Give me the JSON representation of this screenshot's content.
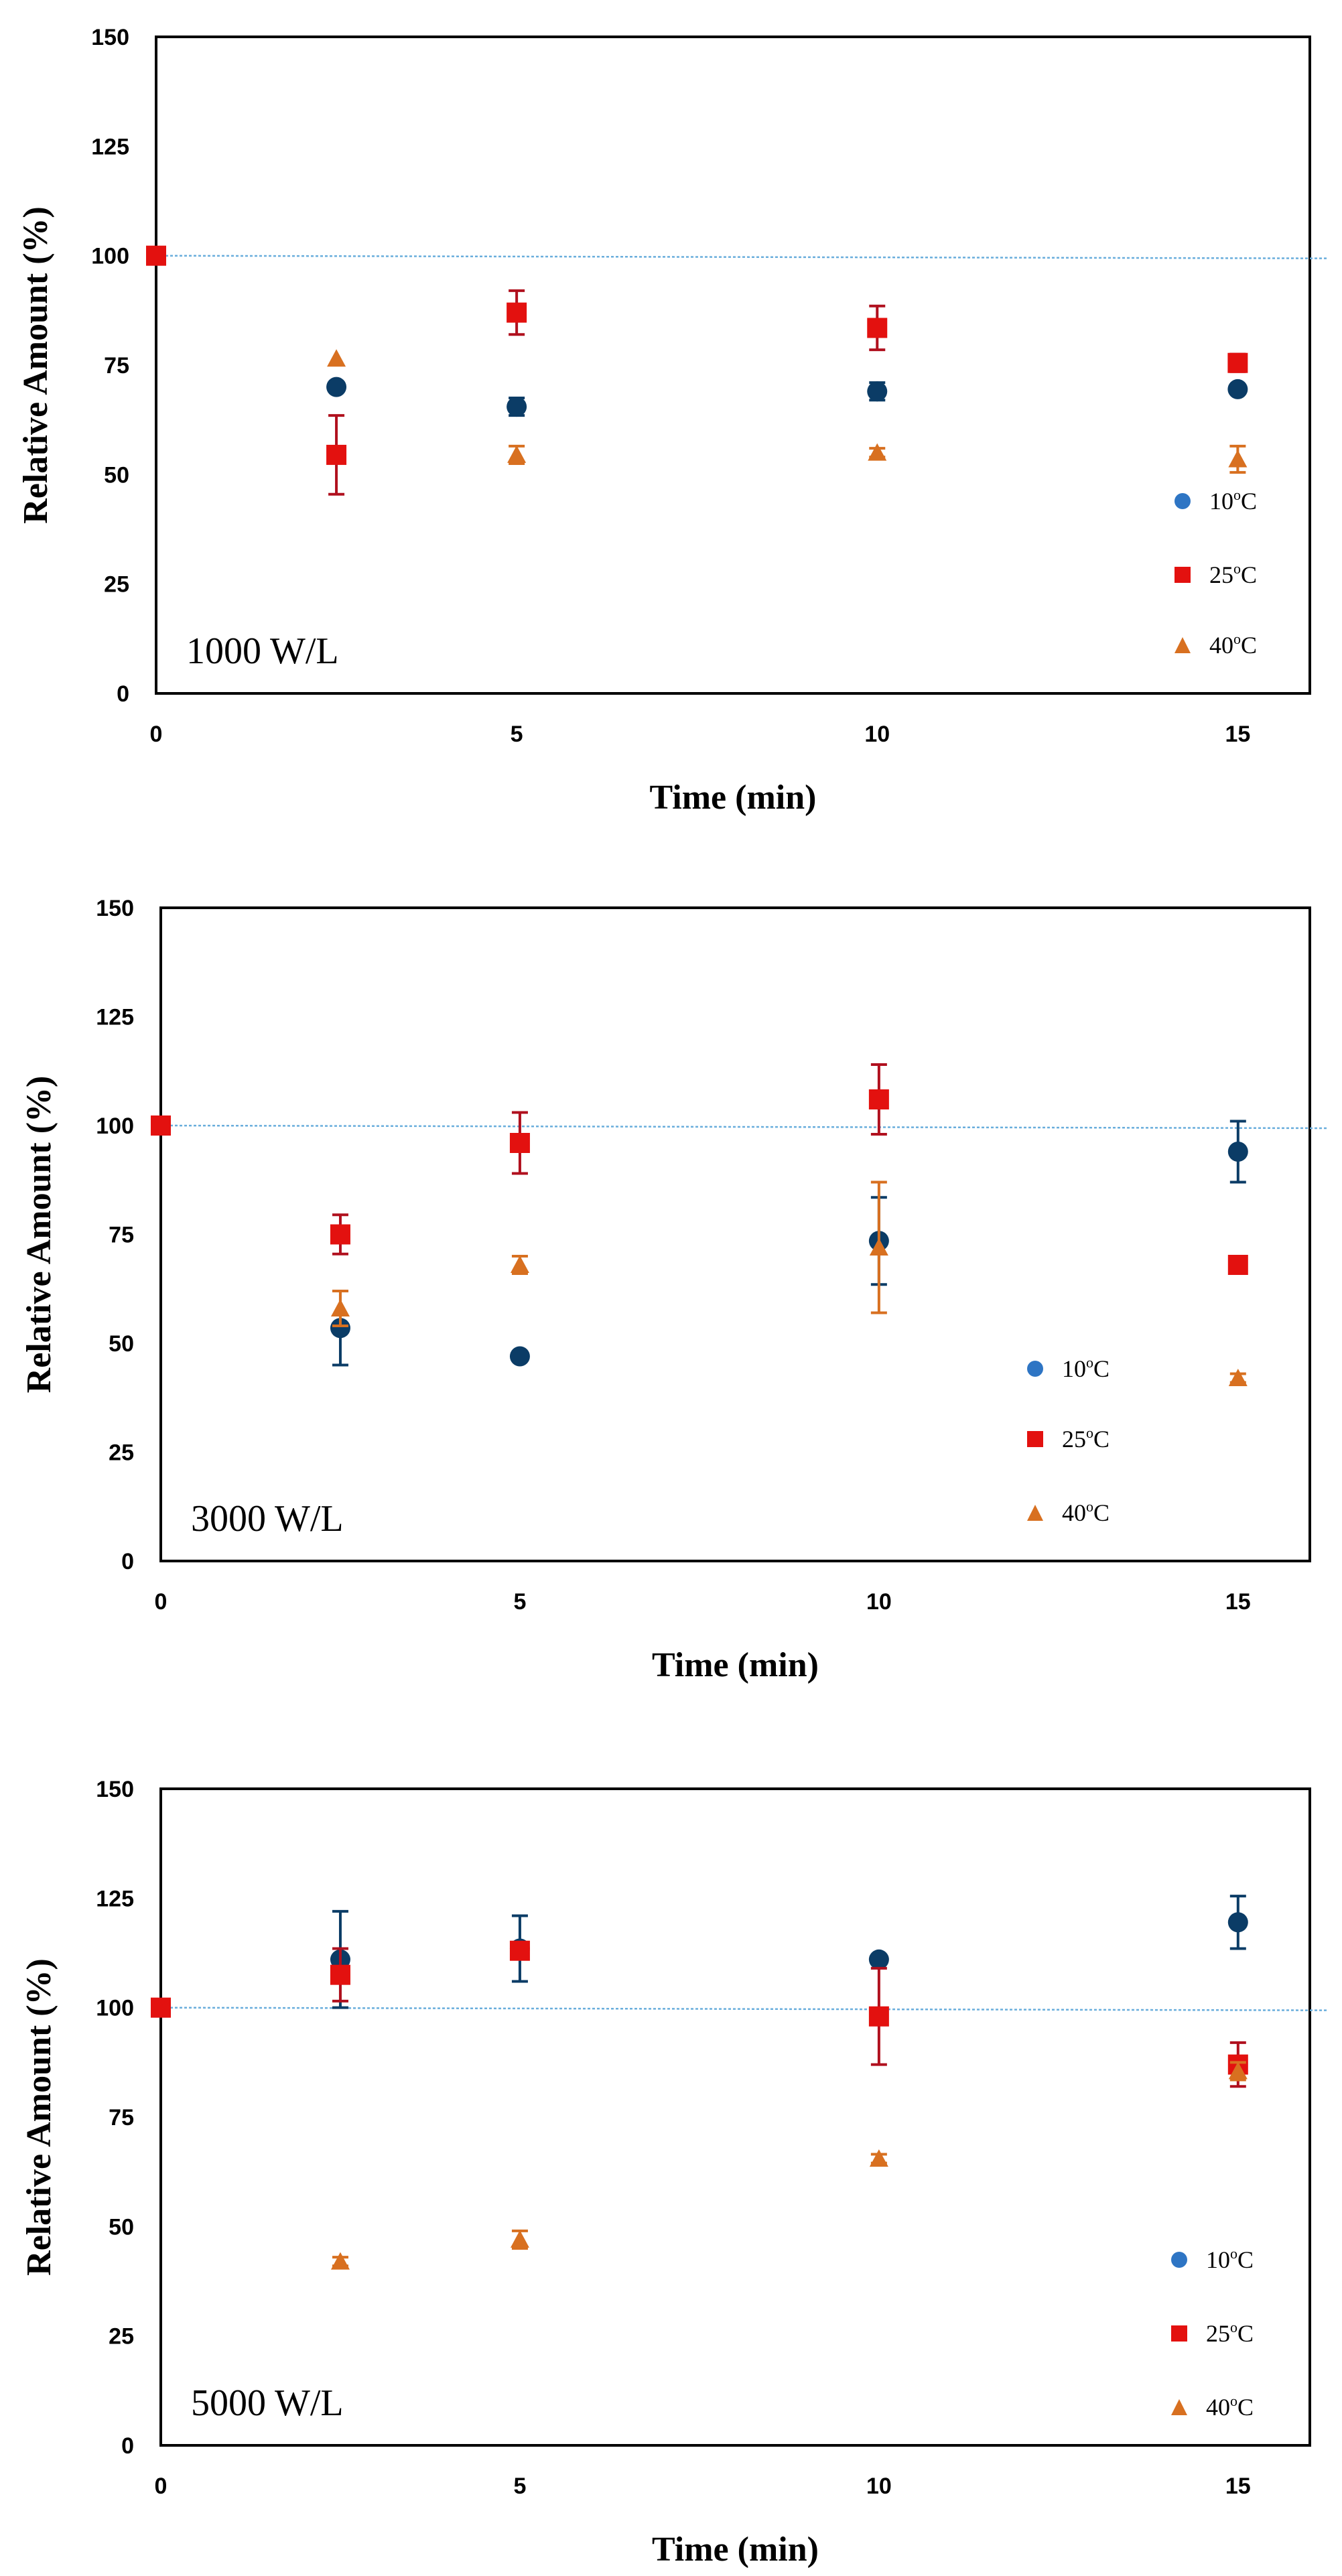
{
  "colors": {
    "c10": "#0b3c66",
    "c10_legend": "#2e75c4",
    "c25": "#e3110f",
    "c25_err": "#b0101e",
    "c40": "#d87020",
    "ref_line": "#6aaedc"
  },
  "chart_data": [
    {
      "type": "scatter",
      "panel_label": "1000 W/L",
      "xlabel": "Time (min)",
      "ylabel": "Relative Amount (%)",
      "xlim": [
        0,
        16
      ],
      "ylim": [
        0,
        150
      ],
      "xticks": [
        0,
        5,
        10,
        15
      ],
      "yticks": [
        0,
        25,
        50,
        75,
        100,
        125,
        150
      ],
      "reference_line": 100,
      "legend_position": "bottom-right",
      "series": [
        {
          "name": "10°C",
          "legend_main": "10",
          "legend_sup": "o",
          "legend_tail": "C",
          "marker": "circle",
          "color": "#0b3c66",
          "x": [
            2.5,
            5,
            10,
            15
          ],
          "y": [
            70,
            65.5,
            69,
            69.5
          ],
          "err": [
            0,
            2,
            2,
            0
          ]
        },
        {
          "name": "25°C",
          "legend_main": "25",
          "legend_sup": "o",
          "legend_tail": "C",
          "marker": "square",
          "color": "#e3110f",
          "x": [
            0,
            2.5,
            5,
            10,
            15
          ],
          "y": [
            100,
            54.5,
            87,
            83.5,
            75.5
          ],
          "err": [
            0,
            9,
            5,
            5,
            2
          ]
        },
        {
          "name": "40°C",
          "legend_main": "40",
          "legend_sup": "o",
          "legend_tail": "C",
          "marker": "triangle",
          "color": "#d87020",
          "x": [
            2.5,
            5,
            10,
            15
          ],
          "y": [
            76.5,
            54.5,
            55,
            53.5
          ],
          "err": [
            0,
            2,
            1,
            3
          ]
        }
      ]
    },
    {
      "type": "scatter",
      "panel_label": "3000 W/L",
      "xlabel": "Time (min)",
      "ylabel": "Relative Amount (%)",
      "xlim": [
        0,
        16
      ],
      "ylim": [
        0,
        150
      ],
      "xticks": [
        0,
        5,
        10,
        15
      ],
      "yticks": [
        0,
        25,
        50,
        75,
        100,
        125,
        150
      ],
      "reference_line": 100,
      "legend_position": "bottom-right",
      "series": [
        {
          "name": "10°C",
          "legend_main": "10",
          "legend_sup": "o",
          "legend_tail": "C",
          "marker": "circle",
          "color": "#0b3c66",
          "x": [
            2.5,
            5,
            10,
            15
          ],
          "y": [
            53.5,
            47,
            73.5,
            94
          ],
          "err": [
            8.5,
            0,
            10,
            7
          ]
        },
        {
          "name": "25°C",
          "legend_main": "25",
          "legend_sup": "o",
          "legend_tail": "C",
          "marker": "square",
          "color": "#e3110f",
          "x": [
            0,
            2.5,
            5,
            10,
            15
          ],
          "y": [
            100,
            75,
            96,
            106,
            68
          ],
          "err": [
            0,
            4.5,
            7,
            8,
            1
          ]
        },
        {
          "name": "40°C",
          "legend_main": "40",
          "legend_sup": "o",
          "legend_tail": "C",
          "marker": "triangle",
          "color": "#d87020",
          "x": [
            2.5,
            5,
            10,
            15
          ],
          "y": [
            58,
            68,
            72,
            42
          ],
          "err": [
            4,
            2,
            15,
            1
          ]
        }
      ]
    },
    {
      "type": "scatter",
      "panel_label": "5000 W/L",
      "xlabel": "Time (min)",
      "ylabel": "Relative Amount (%)",
      "xlim": [
        0,
        16
      ],
      "ylim": [
        0,
        150
      ],
      "xticks": [
        0,
        5,
        10,
        15
      ],
      "yticks": [
        0,
        25,
        50,
        75,
        100,
        125,
        150
      ],
      "reference_line": 100,
      "legend_position": "bottom-right",
      "series": [
        {
          "name": "10°C",
          "legend_main": "10",
          "legend_sup": "o",
          "legend_tail": "C",
          "marker": "circle",
          "color": "#0b3c66",
          "x": [
            2.5,
            5,
            10,
            15
          ],
          "y": [
            111,
            113.5,
            111,
            119.5
          ],
          "err": [
            11,
            7.5,
            1,
            6
          ]
        },
        {
          "name": "25°C",
          "legend_main": "25",
          "legend_sup": "o",
          "legend_tail": "C",
          "marker": "square",
          "color": "#e3110f",
          "x": [
            0,
            2.5,
            5,
            10,
            15
          ],
          "y": [
            100,
            107.5,
            113,
            98,
            87
          ],
          "err": [
            0,
            6,
            0,
            11,
            5
          ]
        },
        {
          "name": "40°C",
          "legend_main": "40",
          "legend_sup": "o",
          "legend_tail": "C",
          "marker": "triangle",
          "color": "#d87020",
          "x": [
            2.5,
            5,
            10,
            15
          ],
          "y": [
            42,
            47,
            65.5,
            85.5
          ],
          "err": [
            1,
            2,
            1,
            2
          ]
        }
      ]
    }
  ]
}
